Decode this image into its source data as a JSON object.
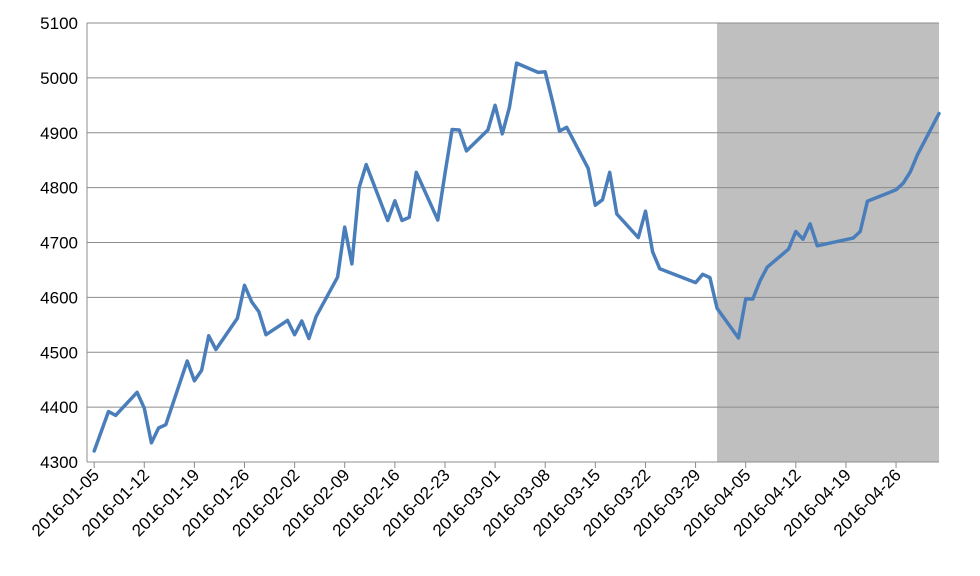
{
  "chart_data": {
    "type": "line",
    "title": "",
    "xlabel": "",
    "ylabel": "",
    "ylim": [
      4300,
      5100
    ],
    "xlim": [
      "2016-01-04",
      "2016-05-02"
    ],
    "grid": "horizontal",
    "line_color": "#4a7ebb",
    "shaded_region": {
      "start": "2016-04-01",
      "end": "2016-05-02",
      "color": "#bfbfbf"
    },
    "y_ticks": [
      "4300",
      "4400",
      "4500",
      "4600",
      "4700",
      "4800",
      "4900",
      "5000",
      "5100"
    ],
    "x_ticks": [
      "2016-01-05",
      "2016-01-12",
      "2016-01-19",
      "2016-01-26",
      "2016-02-02",
      "2016-02-09",
      "2016-02-16",
      "2016-02-23",
      "2016-03-01",
      "2016-03-08",
      "2016-03-15",
      "2016-03-22",
      "2016-03-29",
      "2016-04-05",
      "2016-04-12",
      "2016-04-19",
      "2016-04-26"
    ],
    "series": [
      {
        "points": [
          [
            "2016-01-05",
            4320
          ],
          [
            "2016-01-07",
            4392
          ],
          [
            "2016-01-08",
            4385
          ],
          [
            "2016-01-11",
            4427
          ],
          [
            "2016-01-12",
            4398
          ],
          [
            "2016-01-13",
            4335
          ],
          [
            "2016-01-14",
            4362
          ],
          [
            "2016-01-15",
            4368
          ],
          [
            "2016-01-18",
            4484
          ],
          [
            "2016-01-19",
            4448
          ],
          [
            "2016-01-20",
            4467
          ],
          [
            "2016-01-21",
            4530
          ],
          [
            "2016-01-22",
            4505
          ],
          [
            "2016-01-25",
            4562
          ],
          [
            "2016-01-26",
            4622
          ],
          [
            "2016-01-27",
            4592
          ],
          [
            "2016-01-28",
            4574
          ],
          [
            "2016-01-29",
            4532
          ],
          [
            "2016-02-01",
            4558
          ],
          [
            "2016-02-02",
            4532
          ],
          [
            "2016-02-03",
            4557
          ],
          [
            "2016-02-04",
            4525
          ],
          [
            "2016-02-05",
            4565
          ],
          [
            "2016-02-08",
            4637
          ],
          [
            "2016-02-09",
            4728
          ],
          [
            "2016-02-10",
            4661
          ],
          [
            "2016-02-11",
            4800
          ],
          [
            "2016-02-12",
            4842
          ],
          [
            "2016-02-15",
            4740
          ],
          [
            "2016-02-16",
            4776
          ],
          [
            "2016-02-17",
            4740
          ],
          [
            "2016-02-18",
            4746
          ],
          [
            "2016-02-19",
            4828
          ],
          [
            "2016-02-22",
            4741
          ],
          [
            "2016-02-23",
            4826
          ],
          [
            "2016-02-24",
            4906
          ],
          [
            "2016-02-25",
            4905
          ],
          [
            "2016-02-26",
            4867
          ],
          [
            "2016-02-29",
            4905
          ],
          [
            "2016-03-01",
            4950
          ],
          [
            "2016-03-02",
            4898
          ],
          [
            "2016-03-03",
            4946
          ],
          [
            "2016-03-04",
            5027
          ],
          [
            "2016-03-07",
            5010
          ],
          [
            "2016-03-08",
            5011
          ],
          [
            "2016-03-09",
            4958
          ],
          [
            "2016-03-10",
            4903
          ],
          [
            "2016-03-11",
            4910
          ],
          [
            "2016-03-14",
            4835
          ],
          [
            "2016-03-15",
            4768
          ],
          [
            "2016-03-16",
            4778
          ],
          [
            "2016-03-17",
            4828
          ],
          [
            "2016-03-18",
            4752
          ],
          [
            "2016-03-21",
            4709
          ],
          [
            "2016-03-22",
            4757
          ],
          [
            "2016-03-23",
            4683
          ],
          [
            "2016-03-24",
            4652
          ],
          [
            "2016-03-29",
            4627
          ],
          [
            "2016-03-30",
            4642
          ],
          [
            "2016-03-31",
            4636
          ],
          [
            "2016-04-01",
            4580
          ],
          [
            "2016-04-04",
            4526
          ],
          [
            "2016-04-05",
            4597
          ],
          [
            "2016-04-06",
            4597
          ],
          [
            "2016-04-07",
            4630
          ],
          [
            "2016-04-08",
            4655
          ],
          [
            "2016-04-11",
            4688
          ],
          [
            "2016-04-12",
            4720
          ],
          [
            "2016-04-13",
            4706
          ],
          [
            "2016-04-14",
            4734
          ],
          [
            "2016-04-15",
            4694
          ],
          [
            "2016-04-20",
            4708
          ],
          [
            "2016-04-21",
            4720
          ],
          [
            "2016-04-22",
            4775
          ],
          [
            "2016-04-26",
            4796
          ],
          [
            "2016-04-27",
            4808
          ],
          [
            "2016-04-28",
            4829
          ],
          [
            "2016-04-29",
            4860
          ],
          [
            "2016-05-02",
            4935
          ]
        ]
      }
    ]
  }
}
